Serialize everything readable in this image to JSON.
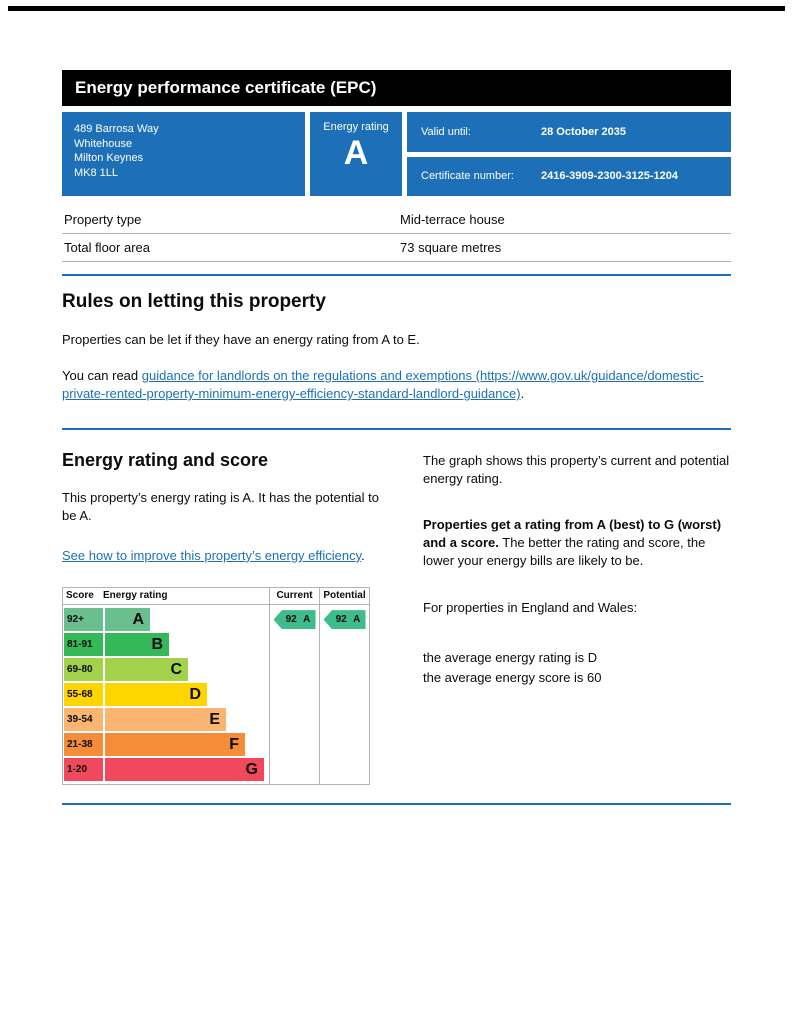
{
  "page": {
    "header_title": "Energy performance certificate (EPC)"
  },
  "summary": {
    "address_lines": [
      "489 Barrosa Way",
      "Whitehouse",
      "Milton Keynes",
      "MK8 1LL"
    ],
    "energy_rating_label": "Energy rating",
    "energy_rating_value": "A",
    "valid_until_label": "Valid until:",
    "valid_until_value": "28 October 2035",
    "certificate_number_label": "Certificate number:",
    "certificate_number_value": "2416-3909-2300-3125-1204",
    "panel_color": "#1d70b8"
  },
  "property_details": {
    "rows": [
      {
        "label": "Property type",
        "value": "Mid-terrace house"
      },
      {
        "label": "Total floor area",
        "value": "73 square metres"
      }
    ]
  },
  "letting_rules": {
    "heading": "Rules on letting this property",
    "paragraph": "Properties can be let if they have an energy rating from A to E.",
    "guidance_prefix": "You can read ",
    "guidance_link": "guidance for landlords on the regulations and exemptions (https://www.gov.uk/guidance/domestic-private-rented-property-minimum-energy-efficiency-standard-landlord-guidance)",
    "guidance_suffix": "."
  },
  "rating_section": {
    "heading": "Energy rating and score",
    "summary": "This property’s energy rating is A. It has the potential to be A.",
    "improve_link": "See how to improve this property’s energy efficiency",
    "improve_suffix": "."
  },
  "chart_data": {
    "type": "epc-band-chart",
    "title": "Energy rating and score",
    "columns": {
      "score": "Score",
      "rating": "Energy rating",
      "current": "Current",
      "potential": "Potential"
    },
    "bands": [
      {
        "score_range": "92+",
        "letter": "A",
        "color": "#6abf8f"
      },
      {
        "score_range": "81-91",
        "letter": "B",
        "color": "#35b958"
      },
      {
        "score_range": "69-80",
        "letter": "C",
        "color": "#a2d24c"
      },
      {
        "score_range": "55-68",
        "letter": "D",
        "color": "#ffd500"
      },
      {
        "score_range": "39-54",
        "letter": "E",
        "color": "#fcb570"
      },
      {
        "score_range": "21-38",
        "letter": "F",
        "color": "#f58c38"
      },
      {
        "score_range": "1-20",
        "letter": "G",
        "color": "#f0485c"
      }
    ],
    "current": {
      "label": "92 A",
      "score": 92,
      "letter": "A",
      "band_index": 0,
      "color": "#3fbc8b"
    },
    "potential": {
      "label": "92 A",
      "score": 92,
      "letter": "A",
      "band_index": 0,
      "color": "#3fbc8b"
    }
  },
  "explanation": {
    "graph_intro": "The graph shows this property’s current and potential energy rating.",
    "ratings_bold": "Properties get a rating from A (best) to G (worst) and a score.",
    "ratings_rest": " The better the rating and score, the lower your energy bills are likely to be.",
    "region_line": "For properties in England and Wales:",
    "average_rating_line": "the average energy rating is D",
    "average_score_line": "the average energy score is 60"
  },
  "theme": {
    "rule_color": "#1d70b8",
    "link_color": "#1d70b8",
    "header_bg": "#000000"
  }
}
